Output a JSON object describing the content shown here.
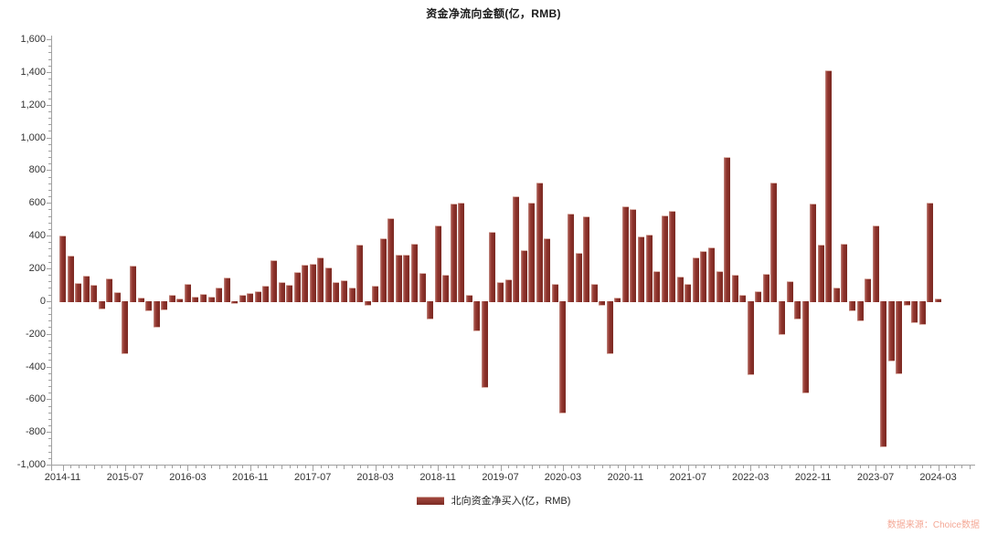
{
  "title": "资金净流向金额(亿，RMB)",
  "legend": {
    "label": "北向资金净买入(亿，RMB)",
    "swatch_color": "#8b3029"
  },
  "source": "数据来源：Choice数据",
  "colors": {
    "bar": "#8a322b",
    "axis": "#a0a0a0",
    "tick_label": "#333333",
    "source_text": "#f4a896"
  },
  "chart_data": {
    "type": "bar",
    "title": "资金净流向金额(亿，RMB)",
    "series_name": "北向资金净买入(亿，RMB)",
    "ylabel": "",
    "xlabel": "",
    "ylim": [
      -1000,
      1600
    ],
    "ytick_interval": 200,
    "ytick_minor_interval": 40,
    "grid": false,
    "legend_position": "bottom",
    "xtick_labels": [
      "2014-11",
      "2015-07",
      "2016-03",
      "2016-11",
      "2017-07",
      "2018-03",
      "2018-11",
      "2019-07",
      "2020-03",
      "2020-11",
      "2021-07",
      "2022-03",
      "2022-11",
      "2023-07",
      "2024-03"
    ],
    "xtick_label_step": 8,
    "x": [
      "2014-11",
      "2014-12",
      "2015-01",
      "2015-02",
      "2015-03",
      "2015-04",
      "2015-05",
      "2015-06",
      "2015-07",
      "2015-08",
      "2015-09",
      "2015-10",
      "2015-11",
      "2015-12",
      "2016-01",
      "2016-02",
      "2016-03",
      "2016-04",
      "2016-05",
      "2016-06",
      "2016-07",
      "2016-08",
      "2016-09",
      "2016-10",
      "2016-11",
      "2016-12",
      "2017-01",
      "2017-02",
      "2017-03",
      "2017-04",
      "2017-05",
      "2017-06",
      "2017-07",
      "2017-08",
      "2017-09",
      "2017-10",
      "2017-11",
      "2017-12",
      "2018-01",
      "2018-02",
      "2018-03",
      "2018-04",
      "2018-05",
      "2018-06",
      "2018-07",
      "2018-08",
      "2018-09",
      "2018-10",
      "2018-11",
      "2018-12",
      "2019-01",
      "2019-02",
      "2019-03",
      "2019-04",
      "2019-05",
      "2019-06",
      "2019-07",
      "2019-08",
      "2019-09",
      "2019-10",
      "2019-11",
      "2019-12",
      "2020-01",
      "2020-02",
      "2020-03",
      "2020-04",
      "2020-05",
      "2020-06",
      "2020-07",
      "2020-08",
      "2020-09",
      "2020-10",
      "2020-11",
      "2020-12",
      "2021-01",
      "2021-02",
      "2021-03",
      "2021-04",
      "2021-05",
      "2021-06",
      "2021-07",
      "2021-08",
      "2021-09",
      "2021-10",
      "2021-11",
      "2021-12",
      "2022-01",
      "2022-02",
      "2022-03",
      "2022-04",
      "2022-05",
      "2022-06",
      "2022-07",
      "2022-08",
      "2022-09",
      "2022-10",
      "2022-11",
      "2022-12",
      "2023-01",
      "2023-02",
      "2023-03",
      "2023-04",
      "2023-05",
      "2023-06",
      "2023-07",
      "2023-08",
      "2023-09",
      "2023-10",
      "2023-11",
      "2023-12",
      "2024-01",
      "2024-02",
      "2024-03"
    ],
    "values": [
      403,
      280,
      113,
      157,
      98,
      -44,
      140,
      55,
      -317,
      219,
      20,
      -57,
      -160,
      -53,
      40,
      17,
      107,
      26,
      42,
      28,
      85,
      146,
      -15,
      37,
      48,
      61,
      92,
      252,
      115,
      100,
      176,
      220,
      226,
      266,
      205,
      116,
      126,
      85,
      347,
      -22,
      94,
      384,
      504,
      283,
      285,
      349,
      172,
      -105,
      464,
      159,
      597,
      600,
      40,
      -180,
      -525,
      425,
      116,
      131,
      640,
      314,
      600,
      725,
      383,
      107,
      -680,
      532,
      297,
      519,
      103,
      -22,
      -321,
      20,
      578,
      565,
      395,
      408,
      185,
      524,
      550,
      150,
      107,
      266,
      305,
      327,
      185,
      880,
      161,
      39,
      -445,
      59,
      164,
      722,
      -203,
      124,
      -110,
      -560,
      595,
      343,
      1410,
      85,
      351,
      -59,
      -118,
      139,
      462,
      -890,
      -364,
      -441,
      -26,
      -127,
      -139,
      600,
      17
    ]
  }
}
